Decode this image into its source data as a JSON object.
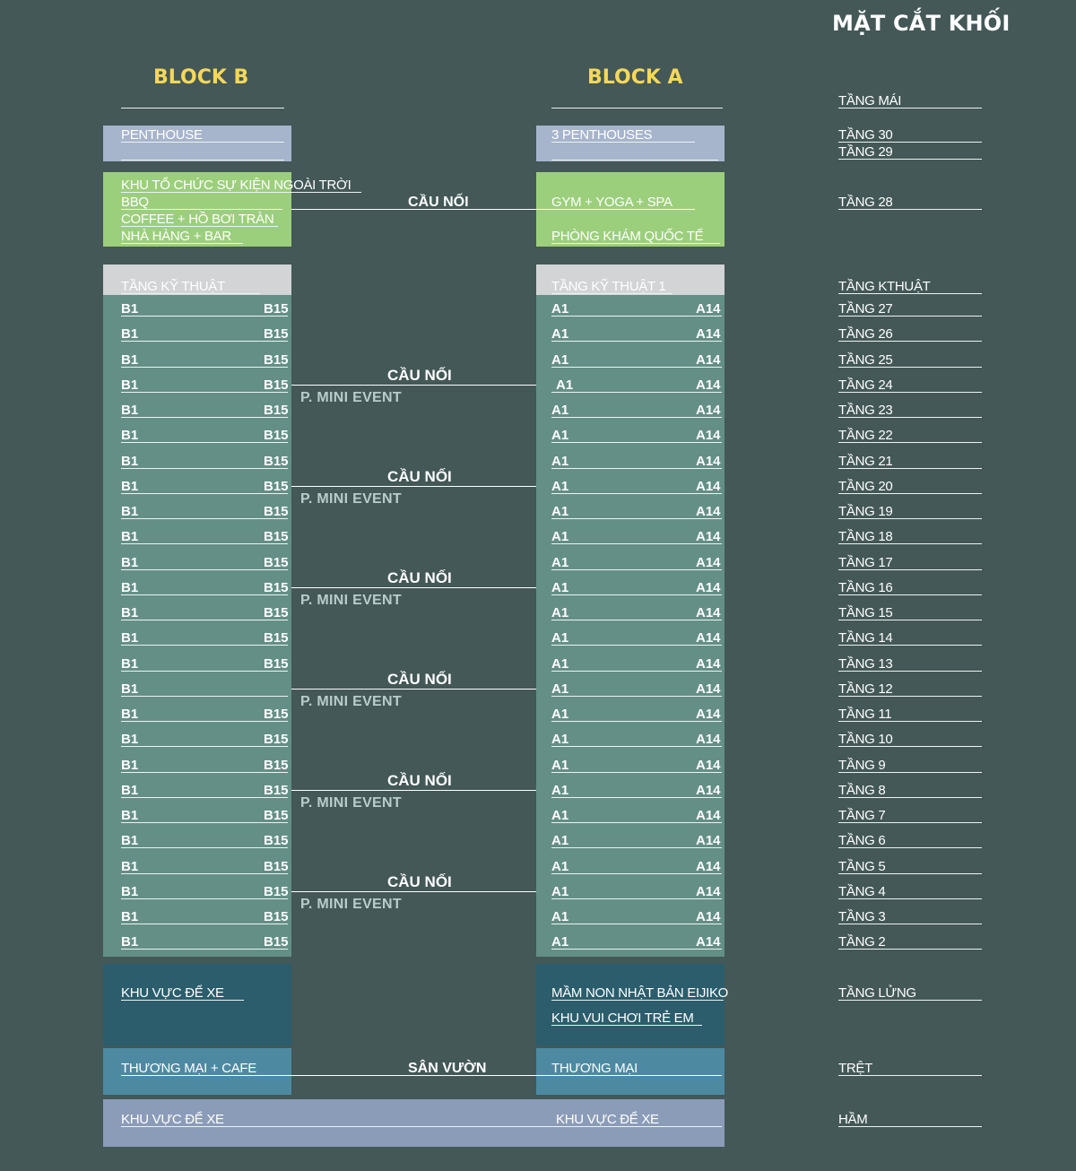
{
  "title": "MẶT CẮT KHỐI",
  "block_b": {
    "title": "BLOCK B",
    "penthouse": "PENTHOUSE",
    "amenities": [
      "KHU TỔ CHỨC SỰ KIỆN NGOÀI TRỜI",
      "BBQ",
      "COFFEE + HỒ BƠI TRÀN",
      "NHÀ HÀNG + BAR"
    ],
    "technical": "TẦNG KỸ THUẬT",
    "unit_first": "B1",
    "unit_last": "B15",
    "parking": "KHU VỰC ĐỂ XE",
    "ground": "THƯƠNG MẠI + CAFE",
    "basement": "KHU VỰC ĐỂ XE"
  },
  "block_a": {
    "title": "BLOCK A",
    "penthouse": "3 PENTHOUSES",
    "amenities": [
      "GYM + YOGA + SPA",
      "PHÒNG KHÁM QUỐC TẾ"
    ],
    "technical": "TẦNG KỸ THUẬT 1",
    "unit_first": "A1",
    "unit_last": "A14",
    "mezzanine": [
      "MẦM NON NHẬT BẢN EIJIKO",
      "KHU VUI CHƠI TRẺ EM"
    ],
    "ground": "THƯƠNG MẠI",
    "basement": "KHU VỰC ĐỂ XE"
  },
  "middle": {
    "bridge": "CẦU NỐI",
    "mini_event": "P. MINI EVENT",
    "garden": "SÂN VƯỜN"
  },
  "levels": {
    "roof": "TẦNG MÁI",
    "f30": "TẦNG 30",
    "f29": "TẦNG 29",
    "f28": "TẦNG 28",
    "tech": "TẦNG KTHUẬT",
    "floors": [
      "TẦNG 27",
      "TẦNG 26",
      "TẦNG 25",
      "TẦNG 24",
      "TẦNG 23",
      "TẦNG 22",
      "TẦNG 21",
      "TẦNG 20",
      "TẦNG 19",
      "TẦNG 18",
      "TẦNG 17",
      "TẦNG 16",
      "TẦNG 15",
      "TẦNG 14",
      "TẦNG 13",
      "TẦNG 12",
      "TẦNG 11",
      "TẦNG 10",
      "TẦNG 9",
      "TẦNG 8",
      "TẦNG 7",
      "TẦNG 6",
      "TẦNG 5",
      "TẦNG 4",
      "TẦNG 3",
      "TẦNG 2"
    ],
    "mezzanine": "TẦNG LỬNG",
    "ground": "TRỆT",
    "basement": "HẦM"
  },
  "colors": {
    "background": "#435857",
    "penthouse": "#a6b4cc",
    "amenity": "#9ccf7c",
    "technical": "#d2d4d6",
    "residential": "#648f86",
    "mezzanine": "#2b5d6c",
    "ground": "#4d8aa2",
    "basement": "#8b9cb9",
    "block_title": "#f5d75a"
  }
}
